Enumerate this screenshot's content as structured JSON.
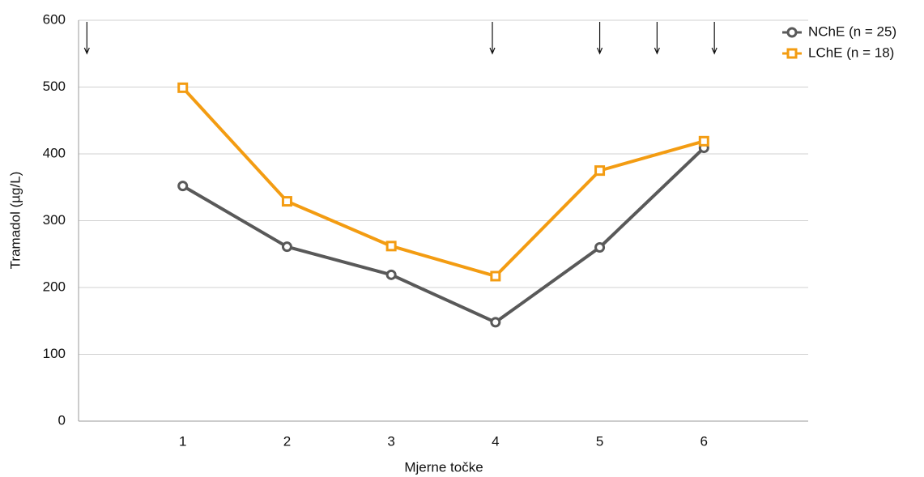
{
  "chart_data": {
    "type": "line",
    "y_label": "Tramadol (µg/L)",
    "x_label": "Mjerne točke",
    "x": [
      1,
      2,
      3,
      4,
      5,
      6
    ],
    "series": [
      {
        "name": "NChE (n = 25)",
        "color": "#595959",
        "marker": "circle",
        "values": [
          352,
          261,
          219,
          148,
          260,
          409
        ]
      },
      {
        "name": "LChE (n = 18)",
        "color": "#f39c12",
        "marker": "square",
        "values": [
          499,
          329,
          262,
          217,
          375,
          419
        ]
      }
    ],
    "arrows_x": [
      0.08,
      3.97,
      5,
      5.55,
      6.1
    ],
    "xlim": [
      0,
      7
    ],
    "xticks": [
      1,
      2,
      3,
      4,
      5,
      6
    ],
    "ylim": [
      0,
      600
    ],
    "yticks": [
      0,
      100,
      200,
      300,
      400,
      500,
      600
    ],
    "grid": true,
    "legend": "top-right"
  }
}
